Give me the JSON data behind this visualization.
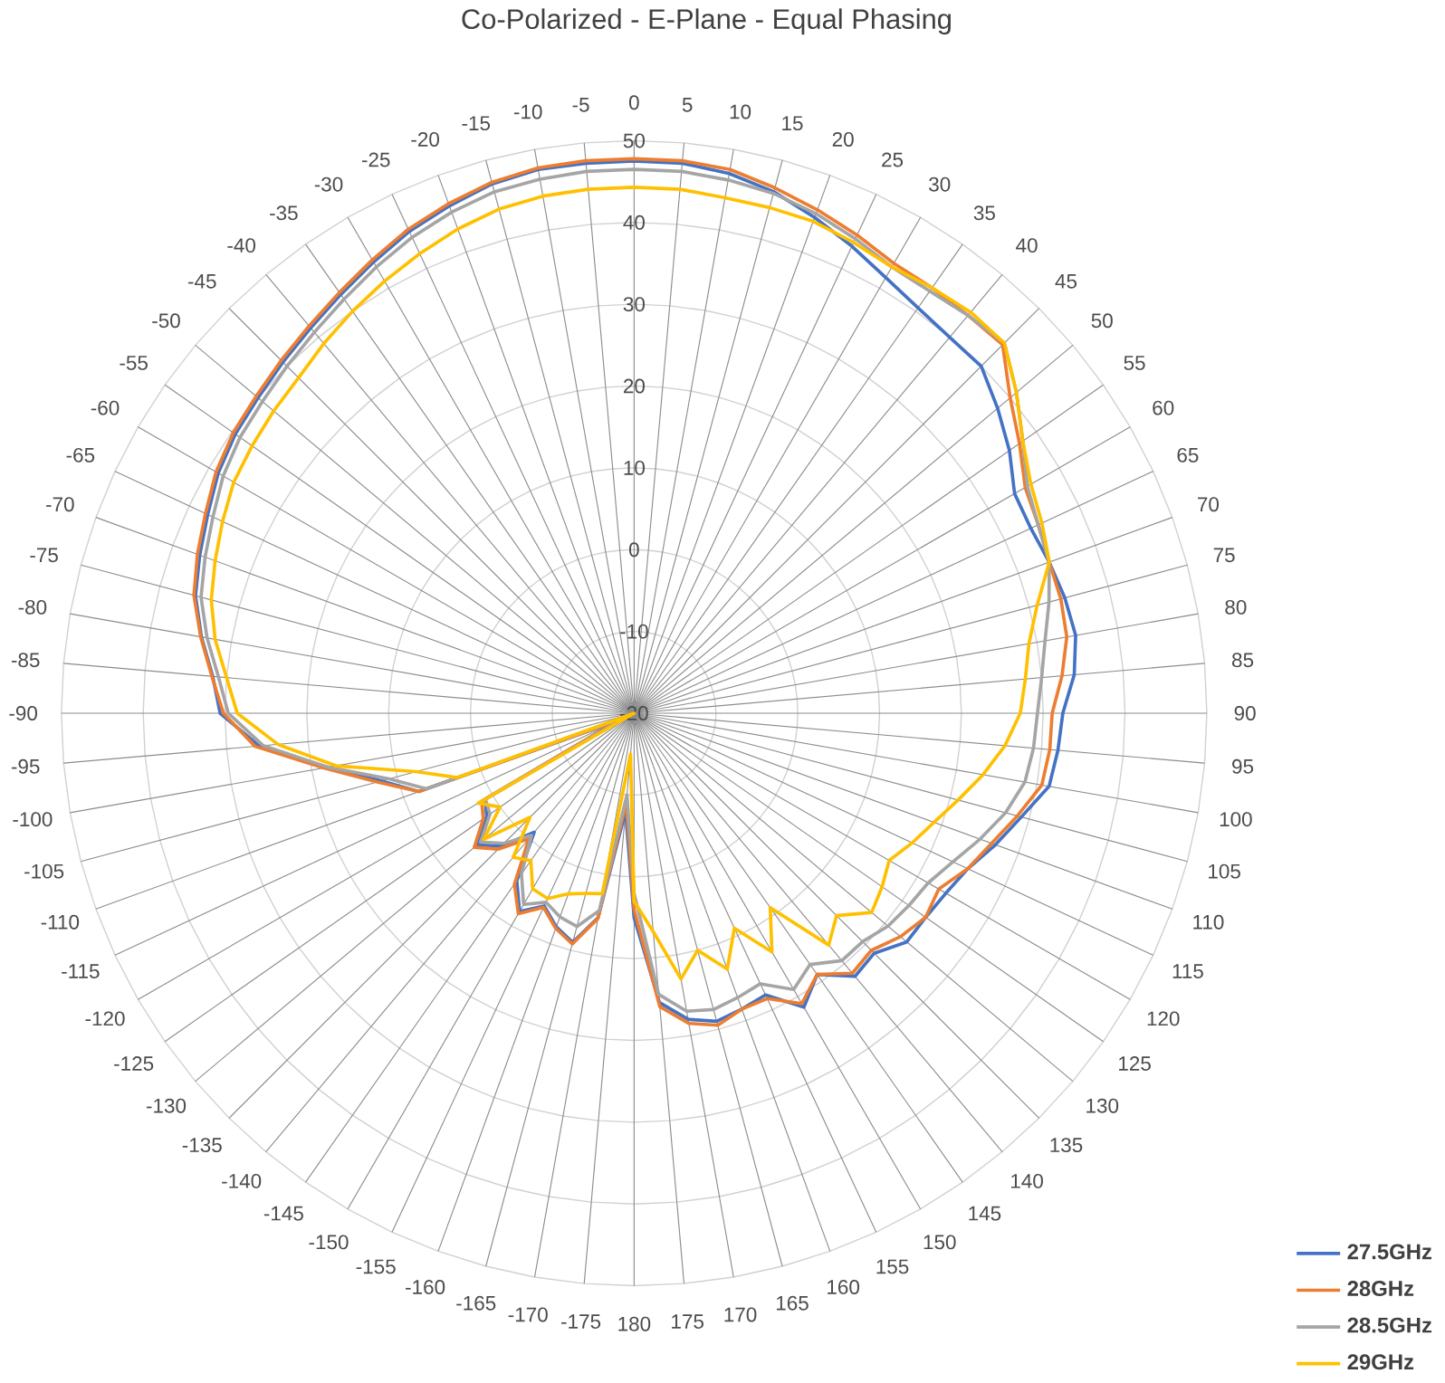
{
  "chart_data": {
    "type": "radar",
    "title": "Co-Polarized - E-Plane - Equal Phasing",
    "categories": [
      "0",
      "5",
      "10",
      "15",
      "20",
      "25",
      "30",
      "35",
      "40",
      "45",
      "50",
      "55",
      "60",
      "65",
      "70",
      "75",
      "80",
      "85",
      "90",
      "95",
      "100",
      "105",
      "110",
      "115",
      "120",
      "125",
      "130",
      "135",
      "140",
      "145",
      "150",
      "155",
      "160",
      "165",
      "170",
      "175",
      "180",
      "-175",
      "-170",
      "-165",
      "-160",
      "-155",
      "-150",
      "-145",
      "-140",
      "-135",
      "-130",
      "-125",
      "-120",
      "-115",
      "-110",
      "-105",
      "-100",
      "-95",
      "-90",
      "-85",
      "-80",
      "-75",
      "-70",
      "-65",
      "-60",
      "-55",
      "-50",
      "-45",
      "-40",
      "-35",
      "-30",
      "-25",
      "-20",
      "-15",
      "-10",
      "-5"
    ],
    "series": [
      {
        "name": "27.5GHz",
        "color": "#4472c4",
        "values": [
          47.5,
          47.5,
          47,
          46,
          44.5,
          43,
          41.5,
          40.5,
          40,
          40,
          38,
          36,
          33.7,
          33.5,
          34,
          34.5,
          34.8,
          34,
          32.4,
          32,
          31.5,
          29,
          27,
          25,
          24,
          23.5,
          23.5,
          21.5,
          22,
          19,
          21.5,
          18,
          18.5,
          19,
          18,
          15.5,
          5,
          -8,
          5.4,
          9,
          7.8,
          6,
          8,
          5,
          -1,
          3,
          5,
          2,
          1,
          -18,
          8,
          12,
          18,
          26,
          30.6,
          31.7,
          33.7,
          35.5,
          36.5,
          37.5,
          38.7,
          39.5,
          40,
          40.7,
          41.5,
          42.5,
          43.7,
          45,
          46,
          47,
          47.5,
          47.5
        ]
      },
      {
        "name": "28GHz",
        "color": "#ed7d31",
        "values": [
          47.8,
          47.8,
          47.5,
          46.5,
          45.5,
          44.5,
          43.5,
          43.5,
          43.5,
          43.7,
          40,
          37.5,
          35.2,
          34.5,
          34,
          34,
          33.7,
          32.5,
          31.1,
          31,
          30.6,
          28.5,
          26.5,
          25,
          23,
          23.5,
          22.5,
          21,
          21.5,
          19,
          21,
          18.5,
          18.5,
          19.5,
          18.5,
          16,
          4,
          -9,
          5.5,
          9.2,
          8,
          6.2,
          8.3,
          5.5,
          0,
          3.5,
          5.5,
          2.5,
          1.5,
          -18,
          8,
          12.5,
          18.5,
          26.5,
          30.2,
          31.8,
          33.8,
          35.7,
          36.8,
          37.8,
          39,
          39.8,
          40.3,
          41,
          41.8,
          42.8,
          44,
          45.3,
          46.3,
          47.2,
          47.7,
          47.8
        ]
      },
      {
        "name": "28.5GHz",
        "color": "#a5a5a5",
        "values": [
          46.5,
          46.5,
          46.2,
          45.8,
          45,
          44,
          43,
          43,
          43.5,
          44,
          41,
          38,
          35.5,
          34.5,
          34,
          32.5,
          31,
          30,
          29.3,
          29,
          28.5,
          27,
          25,
          23,
          21.5,
          21,
          20.5,
          19.5,
          19.5,
          17.5,
          19,
          16.5,
          17,
          17.5,
          17,
          14.5,
          2,
          -10,
          4.5,
          7,
          6.5,
          5.5,
          7,
          4,
          -0.5,
          2.5,
          4.5,
          1.5,
          1,
          -19,
          7,
          11,
          18,
          25.5,
          29.6,
          31,
          33,
          34.8,
          35.8,
          36.8,
          38,
          38.8,
          39.3,
          40,
          40.8,
          41.8,
          43,
          44.2,
          45.2,
          46,
          46.3,
          46.5
        ]
      },
      {
        "name": "29GHz",
        "color": "#ffc000",
        "values": [
          44.3,
          44.3,
          44,
          44,
          44,
          43.5,
          43,
          43.5,
          44,
          44,
          41,
          38,
          36,
          35,
          34,
          31,
          29,
          28,
          27.2,
          25.5,
          23.3,
          21,
          19,
          17.5,
          16,
          17,
          17.9,
          15,
          17,
          9,
          13.7,
          9,
          13.3,
          10,
          13,
          6.8,
          3,
          -15,
          2.4,
          2.8,
          3.5,
          5,
          4.8,
          2,
          3,
          -2,
          4,
          0,
          2,
          -20,
          3,
          7.6,
          17,
          23.7,
          28.5,
          30,
          32,
          33.5,
          34.5,
          35.5,
          36.5,
          37,
          37.5,
          38,
          39,
          40,
          41,
          42,
          43,
          43.8,
          44.2,
          44.3
        ]
      }
    ],
    "ylim": [
      -20,
      50
    ],
    "yticks": [
      -20,
      -10,
      0,
      10,
      20,
      30,
      40,
      50
    ],
    "grid": true,
    "legend": "bottom right"
  }
}
